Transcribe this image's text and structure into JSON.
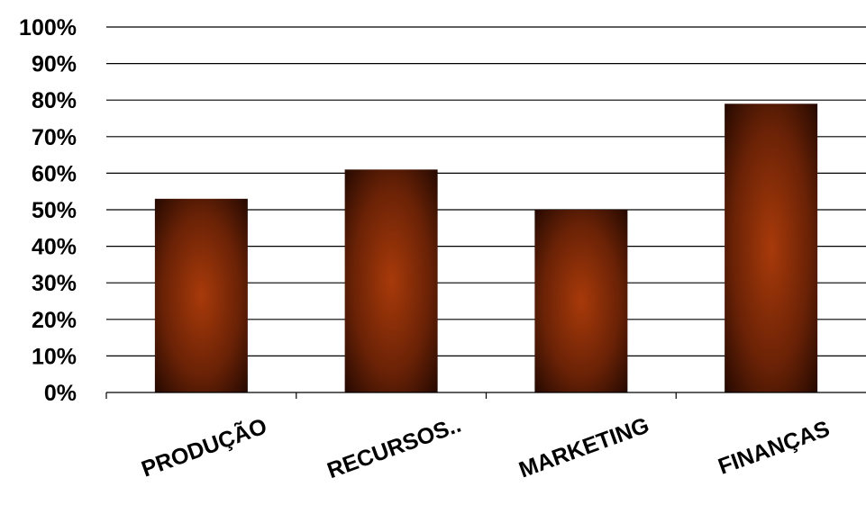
{
  "chart_data": {
    "type": "bar",
    "title": "",
    "xlabel": "",
    "ylabel": "",
    "categories": [
      "PRODUÇÃO",
      "RECURSOS..",
      "MARKETING",
      "FINANÇAS"
    ],
    "values": [
      53,
      61,
      50,
      79
    ],
    "ylim": [
      0,
      100
    ],
    "yticks": [
      "0%",
      "10%",
      "20%",
      "30%",
      "40%",
      "50%",
      "60%",
      "70%",
      "80%",
      "90%",
      "100%"
    ],
    "grid": true,
    "legend": "none",
    "colors": {
      "bar_center": "#a83a0a",
      "bar_edge": "#1a0500"
    }
  }
}
